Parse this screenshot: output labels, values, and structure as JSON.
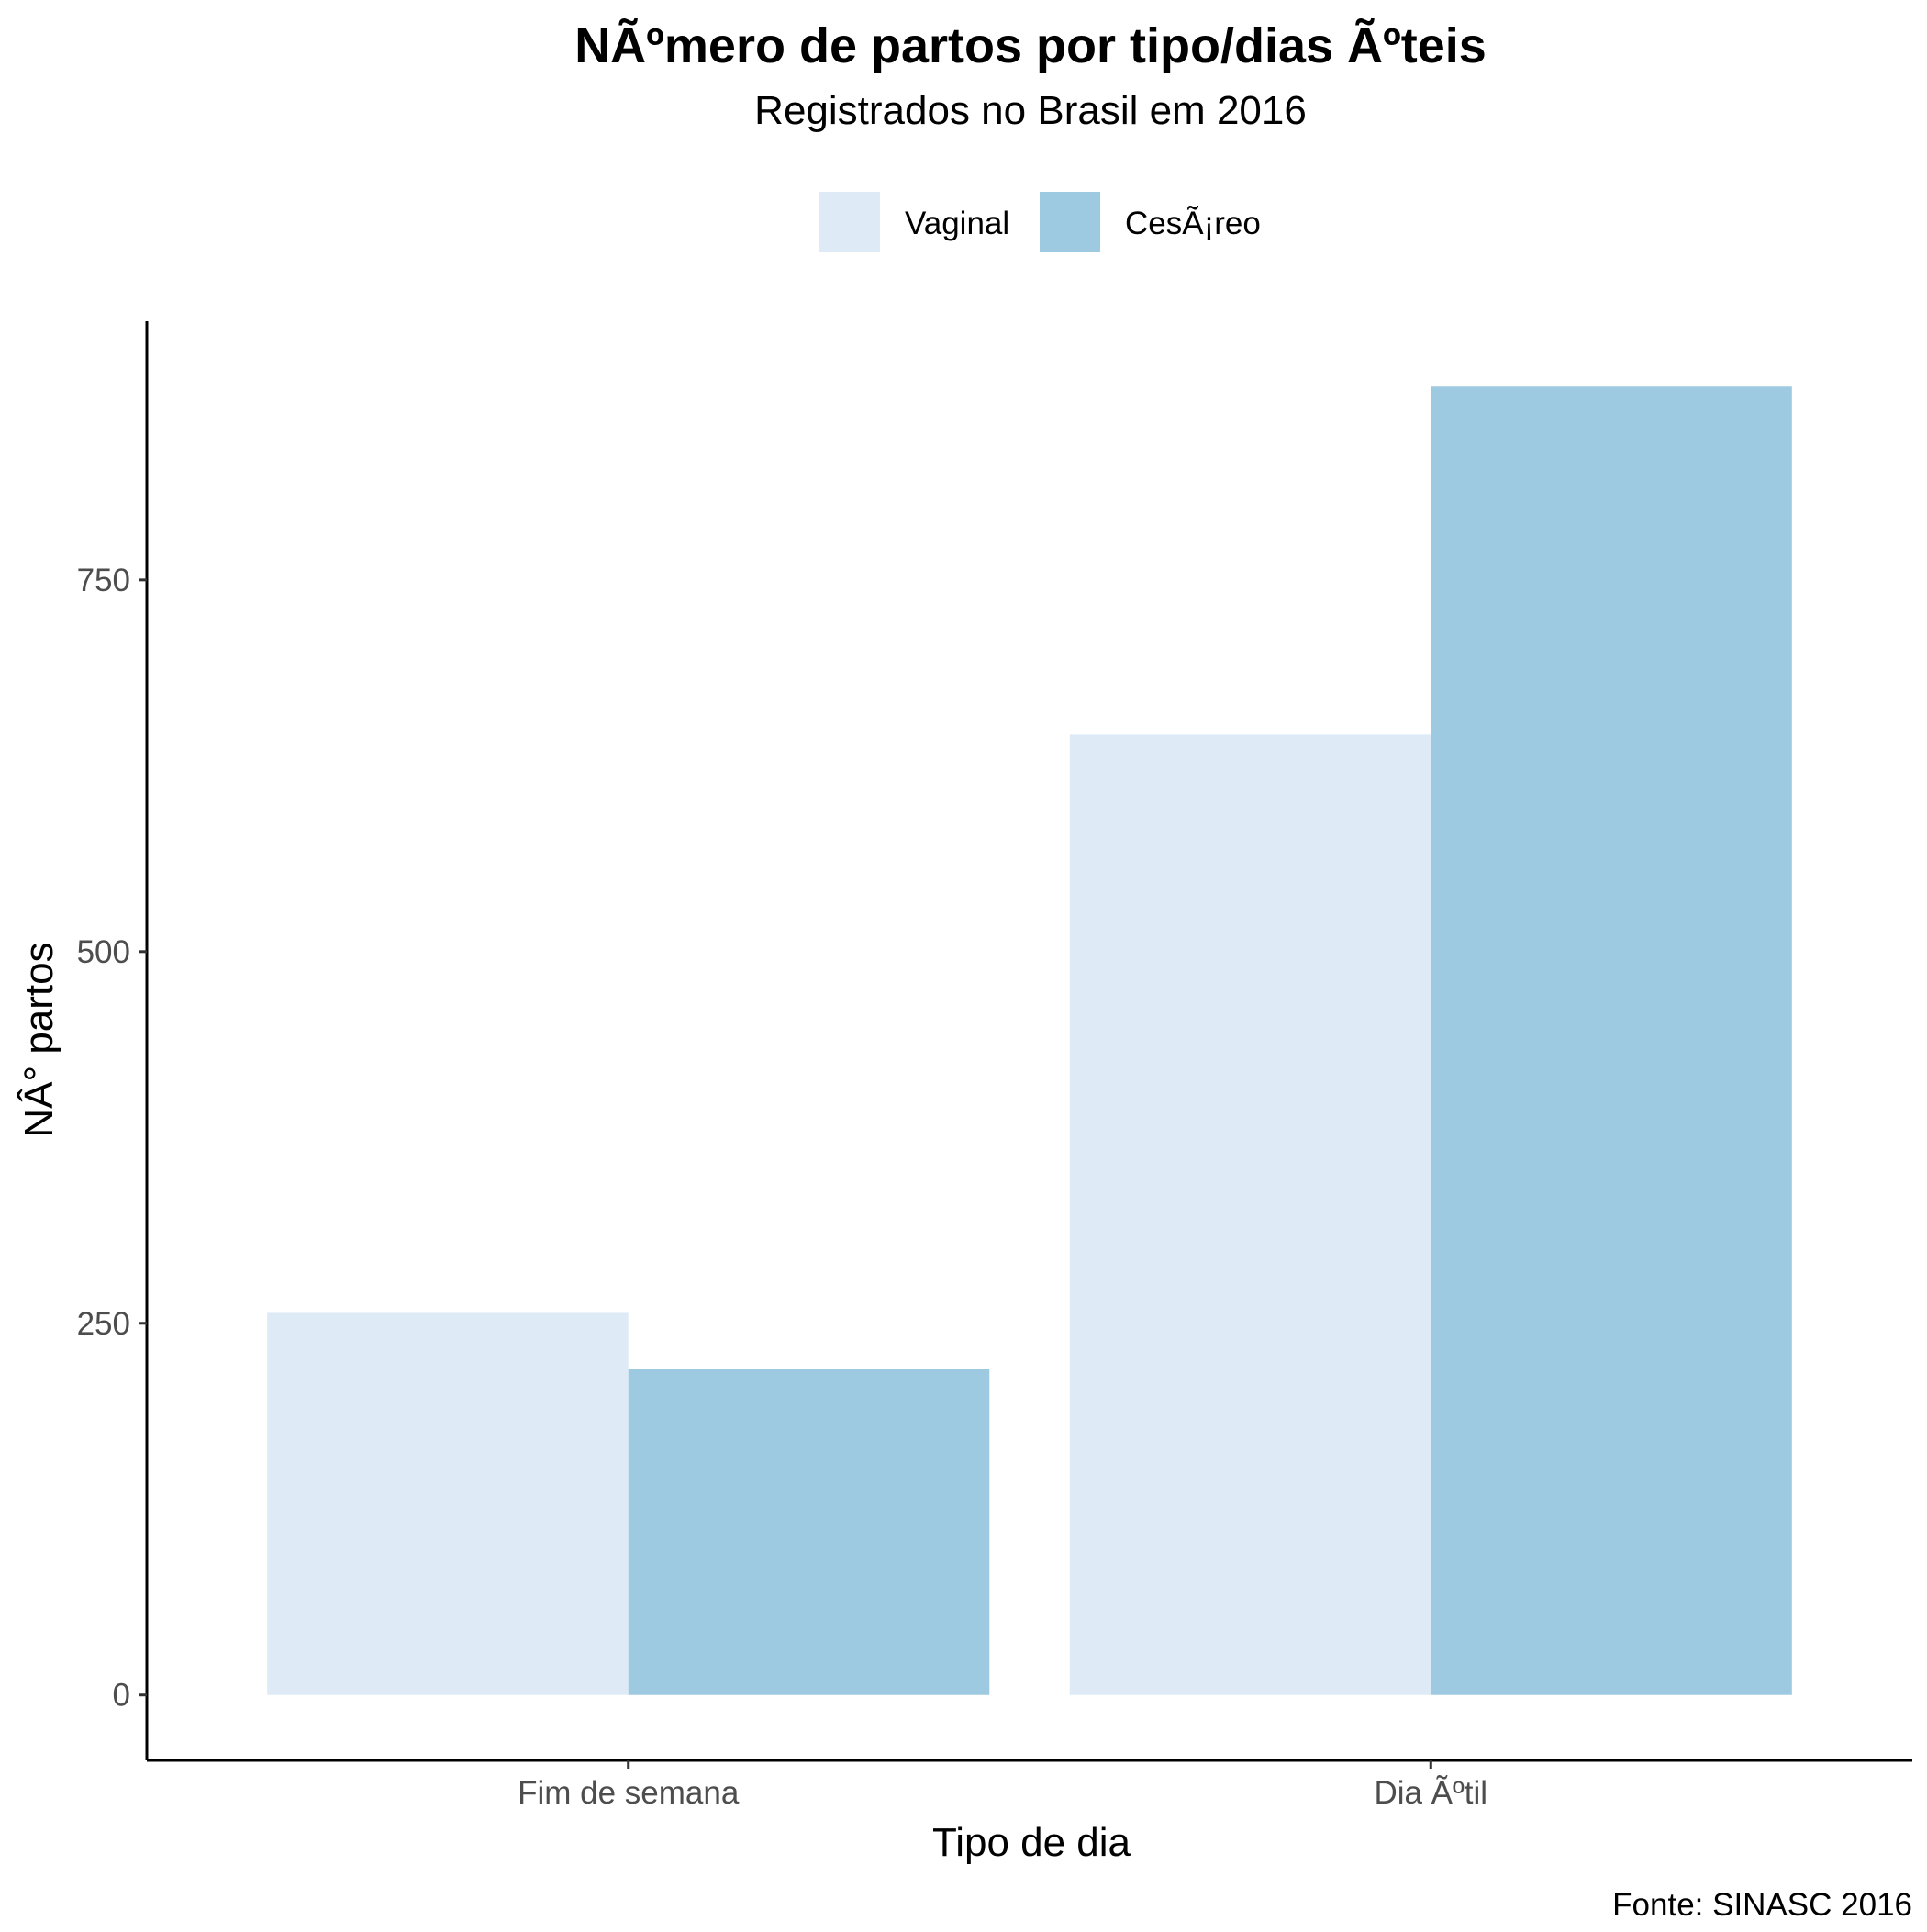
{
  "chart_data": {
    "type": "bar",
    "title": "NÃºmero de partos por tipo/dias Ãºteis",
    "subtitle": "Registrados no Brasil em 2016",
    "xlabel": "Tipo de dia",
    "ylabel": "NÂ° partos",
    "caption": "Fonte: SINASC 2016",
    "categories": [
      "Fim de semana",
      "Dia Ãºtil"
    ],
    "series": [
      {
        "name": "Vaginal",
        "color": "#deebf7",
        "values": [
          257,
          646
        ]
      },
      {
        "name": "CesÃ¡reo",
        "color": "#9ecae1",
        "values": [
          219,
          880
        ]
      }
    ],
    "yticks": [
      0,
      250,
      500,
      750
    ],
    "ylim": [
      -44,
      924
    ],
    "grid": false,
    "legend": "top"
  }
}
